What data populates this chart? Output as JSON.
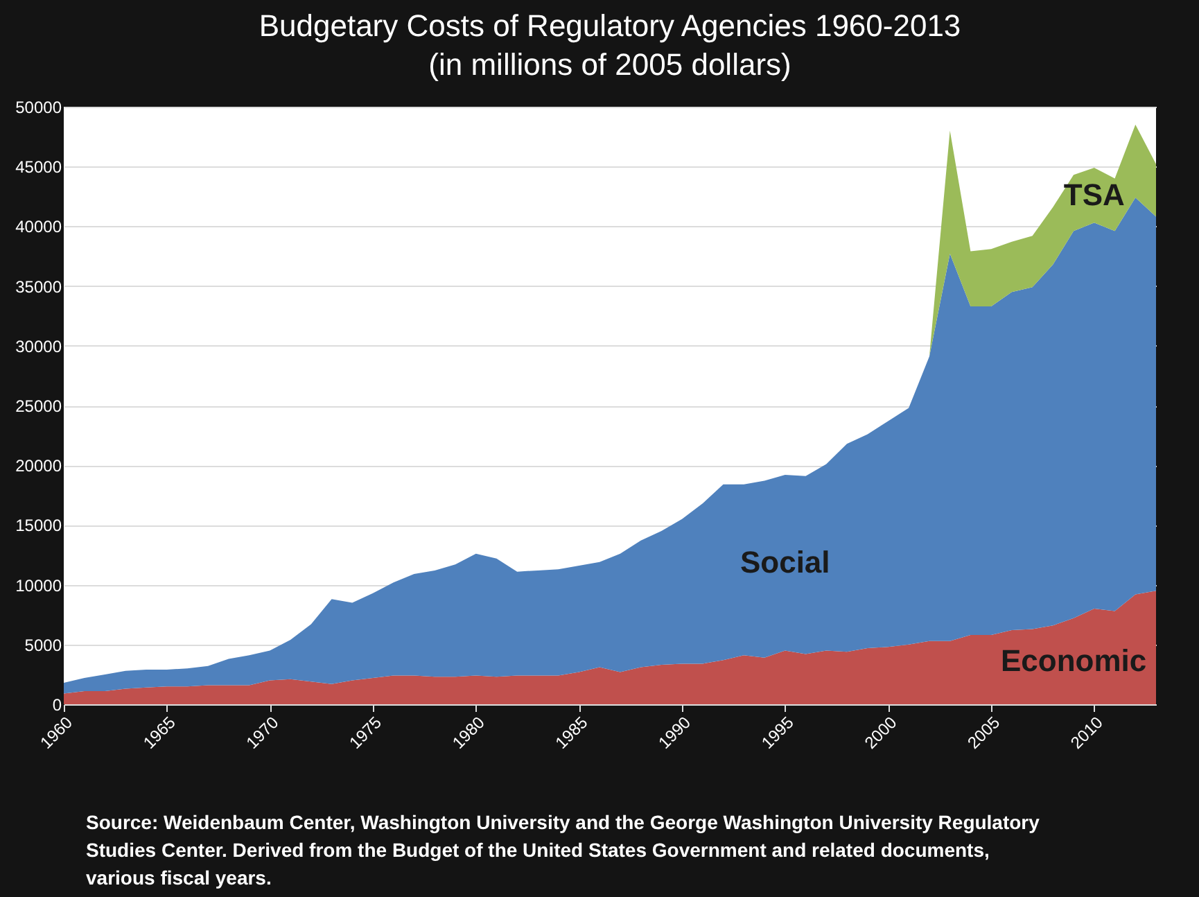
{
  "chart_data": {
    "type": "area",
    "stacked": true,
    "title": "Budgetary Costs of Regulatory Agencies 1960-2013",
    "subtitle": "(in millions of 2005 dollars)",
    "x": [
      1960,
      1961,
      1962,
      1963,
      1964,
      1965,
      1966,
      1967,
      1968,
      1969,
      1970,
      1971,
      1972,
      1973,
      1974,
      1975,
      1976,
      1977,
      1978,
      1979,
      1980,
      1981,
      1982,
      1983,
      1984,
      1985,
      1986,
      1987,
      1988,
      1989,
      1990,
      1991,
      1992,
      1993,
      1994,
      1995,
      1996,
      1997,
      1998,
      1999,
      2000,
      2001,
      2002,
      2003,
      2004,
      2005,
      2006,
      2007,
      2008,
      2009,
      2010,
      2011,
      2012,
      2013
    ],
    "series": [
      {
        "name": "Economic",
        "color": "#c0504d",
        "values": [
          900,
          1100,
          1100,
          1300,
          1400,
          1500,
          1500,
          1600,
          1600,
          1600,
          2000,
          2100,
          1900,
          1700,
          2000,
          2200,
          2400,
          2400,
          2300,
          2300,
          2400,
          2300,
          2400,
          2400,
          2400,
          2700,
          3100,
          2700,
          3100,
          3300,
          3400,
          3400,
          3700,
          4100,
          3900,
          4500,
          4200,
          4500,
          4400,
          4700,
          4800,
          5000,
          5300,
          5300,
          5800,
          5800,
          6200,
          6300,
          6600,
          7200,
          8000,
          7800,
          9200,
          9500
        ]
      },
      {
        "name": "Social",
        "color": "#4f81bd",
        "values": [
          900,
          1100,
          1400,
          1500,
          1500,
          1400,
          1500,
          1600,
          2200,
          2500,
          2500,
          3300,
          4800,
          7100,
          6500,
          7100,
          7800,
          8500,
          8900,
          9400,
          10200,
          9900,
          8700,
          8800,
          8900,
          8900,
          8800,
          9900,
          10600,
          11200,
          12100,
          13400,
          14700,
          14300,
          14800,
          14700,
          14900,
          15600,
          17400,
          17900,
          18900,
          19800,
          23800,
          32400,
          27500,
          27500,
          28300,
          28600,
          30200,
          32400,
          32300,
          31800,
          33200,
          31300
        ]
      },
      {
        "name": "TSA",
        "color": "#9bbb59",
        "values": [
          0,
          0,
          0,
          0,
          0,
          0,
          0,
          0,
          0,
          0,
          0,
          0,
          0,
          0,
          0,
          0,
          0,
          0,
          0,
          0,
          0,
          0,
          0,
          0,
          0,
          0,
          0,
          0,
          0,
          0,
          0,
          0,
          0,
          0,
          0,
          0,
          0,
          0,
          0,
          0,
          0,
          0,
          0,
          10300,
          4600,
          4800,
          4200,
          4300,
          4800,
          4700,
          4600,
          4400,
          6100,
          4400
        ]
      }
    ],
    "xlim": [
      1960,
      2013
    ],
    "xticks": [
      1960,
      1965,
      1970,
      1975,
      1980,
      1985,
      1990,
      1995,
      2000,
      2005,
      2010
    ],
    "ylim": [
      0,
      50000
    ],
    "yticks": [
      0,
      5000,
      10000,
      15000,
      20000,
      25000,
      30000,
      35000,
      40000,
      45000,
      50000
    ],
    "grid": "y",
    "legend": false,
    "annotations": [
      "Source:  Weidenbaum Center, Washington University and the George Washington University Regulatory Studies Center.  Derived from the Budget of the United States Government and related documents, various fiscal years."
    ]
  }
}
